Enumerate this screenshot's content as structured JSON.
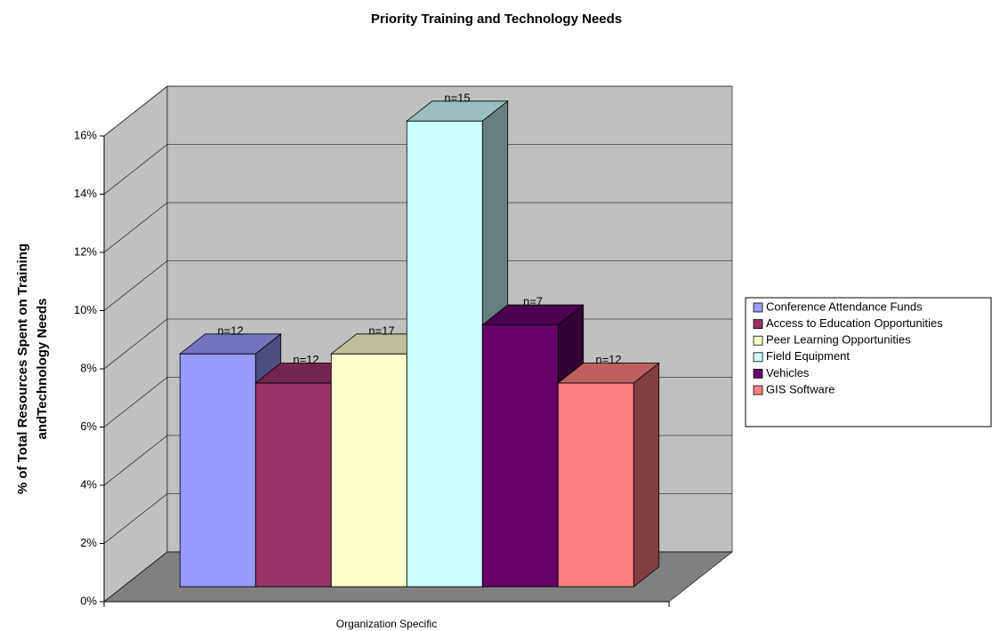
{
  "chart_data": {
    "type": "bar3d",
    "title": "Priority Training and Technology Needs",
    "y_label": [
      "% of Total Resources Spent on Training",
      "andTechnology Needs"
    ],
    "categories": [
      "Organization Specific"
    ],
    "series": [
      {
        "name": "Conference Attendance Funds",
        "color": "#9999ff",
        "values": [
          8
        ],
        "annotation": "n=12"
      },
      {
        "name": "Access to Education Opportunities",
        "color": "#993366",
        "values": [
          7
        ],
        "annotation": "n=12"
      },
      {
        "name": "Peer Learning Opportunities",
        "color": "#ffffcc",
        "values": [
          8
        ],
        "annotation": "n=17"
      },
      {
        "name": "Field Equipment",
        "color": "#ccffff",
        "values": [
          16
        ],
        "annotation": "n=15"
      },
      {
        "name": "Vehicles",
        "color": "#660066",
        "values": [
          9
        ],
        "annotation": "n=7"
      },
      {
        "name": "GIS Software",
        "color": "#ff8080",
        "values": [
          7
        ],
        "annotation": "n=12"
      }
    ],
    "ylim": [
      0,
      16
    ],
    "yticks": [
      {
        "value": 0,
        "label": "0%"
      },
      {
        "value": 2,
        "label": "2%"
      },
      {
        "value": 4,
        "label": "4%"
      },
      {
        "value": 6,
        "label": "6%"
      },
      {
        "value": 8,
        "label": "8%"
      },
      {
        "value": 10,
        "label": "10%"
      },
      {
        "value": 12,
        "label": "12%"
      },
      {
        "value": 14,
        "label": "14%"
      },
      {
        "value": 16,
        "label": "16%"
      }
    ],
    "grid": true,
    "legend": "right"
  }
}
